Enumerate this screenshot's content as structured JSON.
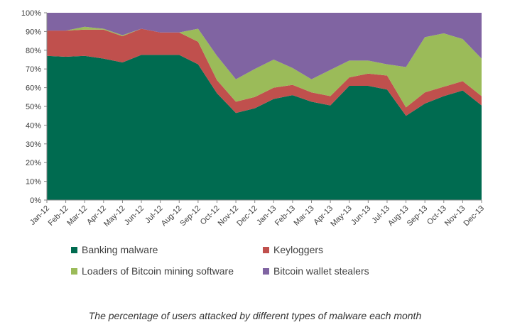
{
  "chart_data": {
    "type": "area",
    "stacked": true,
    "percent": true,
    "title": "",
    "xlabel": "",
    "ylabel": "",
    "ylim": [
      0,
      100
    ],
    "y_ticks": [
      "0%",
      "10%",
      "20%",
      "30%",
      "40%",
      "50%",
      "60%",
      "70%",
      "80%",
      "90%",
      "100%"
    ],
    "grid": false,
    "legend_position": "bottom",
    "categories": [
      "Jan-12",
      "Feb-12",
      "Mar-12",
      "Apr-12",
      "May-12",
      "Jun-12",
      "Jul-12",
      "Aug-12",
      "Sep-12",
      "Oct-12",
      "Nov-12",
      "Dec-12",
      "Jan-13",
      "Feb-13",
      "Mar-13",
      "Apr-13",
      "May-13",
      "Jun-13",
      "Jul-13",
      "Aug-13",
      "Sep-13",
      "Oct-13",
      "Nov-13",
      "Dec-13"
    ],
    "series": [
      {
        "name": "Banking malware",
        "color": "#006B50",
        "values": [
          77,
          76.5,
          77,
          75.5,
          73.5,
          77.5,
          77.5,
          77.5,
          72.5,
          57,
          46.5,
          49,
          54,
          56,
          52.5,
          50.5,
          61,
          61,
          59,
          45,
          51.5,
          55.5,
          58.5,
          50.5
        ]
      },
      {
        "name": "Keyloggers",
        "color": "#C0504D",
        "values": [
          13.5,
          14,
          14,
          15.5,
          14,
          14,
          12,
          12,
          12,
          7,
          6,
          6,
          6,
          5.5,
          5,
          5,
          4.5,
          6.5,
          7.5,
          4.5,
          6,
          5,
          5,
          5
        ]
      },
      {
        "name": "Loaders of Bitcoin mining software",
        "color": "#9BBB59",
        "values": [
          0,
          0,
          1.5,
          0.5,
          0.5,
          0,
          0,
          0,
          7,
          13,
          12,
          15,
          15,
          9,
          7,
          14,
          9,
          7,
          6,
          21.5,
          29.5,
          28.5,
          22.5,
          20
        ]
      },
      {
        "name": "Bitcoin wallet stealers",
        "color": "#8064A2",
        "values": [
          9.5,
          9.5,
          7.5,
          8.5,
          12,
          8.5,
          10.5,
          10.5,
          8.5,
          23,
          35.5,
          30,
          25,
          29.5,
          35.5,
          30.5,
          25.5,
          25.5,
          27.5,
          29,
          13,
          11,
          14,
          24.5
        ]
      }
    ]
  },
  "caption": "The percentage of users attacked by different types of malware each month"
}
